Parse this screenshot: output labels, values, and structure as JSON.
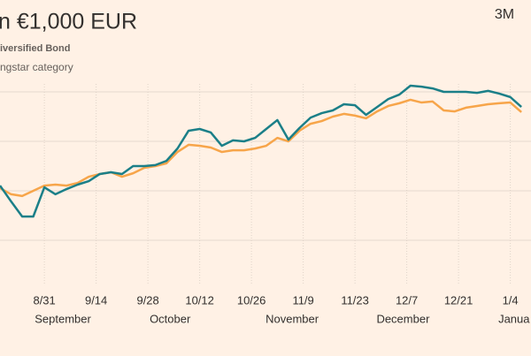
{
  "chart_data": {
    "type": "line",
    "title": "n €1,000 EUR",
    "range_button": "3M",
    "x": [
      -12,
      -9,
      -6,
      -3,
      0,
      3,
      6,
      9,
      12,
      15,
      18,
      21,
      24,
      27,
      30,
      33,
      36,
      39,
      42,
      45,
      48,
      51,
      54,
      57,
      60,
      63,
      66,
      69,
      72,
      75,
      78,
      81,
      84,
      87,
      90,
      93,
      96,
      99,
      102,
      105,
      108,
      111,
      114,
      117,
      120,
      123,
      126,
      129
    ],
    "xlim": [
      -12,
      131.6
    ],
    "xticks": [
      {
        "value": 0,
        "label": "8/31"
      },
      {
        "value": 14,
        "label": "9/14"
      },
      {
        "value": 28,
        "label": "9/28"
      },
      {
        "value": 42,
        "label": "10/12"
      },
      {
        "value": 56,
        "label": "10/26"
      },
      {
        "value": 70,
        "label": "11/9"
      },
      {
        "value": 84,
        "label": "11/23"
      },
      {
        "value": 98,
        "label": "12/7"
      },
      {
        "value": 112,
        "label": "12/21"
      },
      {
        "value": 126,
        "label": "1/4"
      }
    ],
    "month_labels": [
      {
        "value": 5,
        "label": "September"
      },
      {
        "value": 34,
        "label": "October"
      },
      {
        "value": 67,
        "label": "November"
      },
      {
        "value": 97,
        "label": "December"
      },
      {
        "value": 127,
        "label": "Janua"
      }
    ],
    "ylim": [
      960,
      1060
    ],
    "ygrid": [
      980,
      1000,
      1020,
      1040
    ],
    "series": [
      {
        "name": "iversified Bond",
        "color": "#1b7f88",
        "values": [
          1002.1,
          995.7,
          989.6,
          989.6,
          1001.4,
          998.6,
          1000.7,
          1002.5,
          1003.9,
          1006.8,
          1007.5,
          1006.8,
          1010,
          1010,
          1010.4,
          1012.1,
          1017.1,
          1024.3,
          1025,
          1023.6,
          1018.2,
          1020.4,
          1020,
          1021.4,
          1025,
          1028.6,
          1020.7,
          1025.4,
          1029.6,
          1031.4,
          1032.5,
          1035,
          1034.6,
          1030.7,
          1033.9,
          1037.1,
          1038.9,
          1042.5,
          1042.1,
          1041.4,
          1040,
          1040,
          1040,
          1039.6,
          1040.4,
          1039.3,
          1037.9,
          1033.9
        ]
      },
      {
        "name": "ngstar category",
        "color": "#f7a54a",
        "values": [
          1001.1,
          998.6,
          997.9,
          1000,
          1002.1,
          1002.5,
          1002.1,
          1003.2,
          1005.7,
          1006.8,
          1007.5,
          1005.7,
          1007.1,
          1009.3,
          1010,
          1011.1,
          1015.7,
          1018.6,
          1018.2,
          1017.5,
          1015.7,
          1016.4,
          1016.4,
          1017.1,
          1018.2,
          1021.4,
          1020,
          1024.3,
          1027.1,
          1028.2,
          1030,
          1031.1,
          1030.4,
          1029.3,
          1032.1,
          1034.3,
          1035.4,
          1036.8,
          1035.7,
          1036.1,
          1032.5,
          1032.1,
          1033.6,
          1034.3,
          1035,
          1035.4,
          1035.7,
          1031.8
        ]
      }
    ]
  }
}
